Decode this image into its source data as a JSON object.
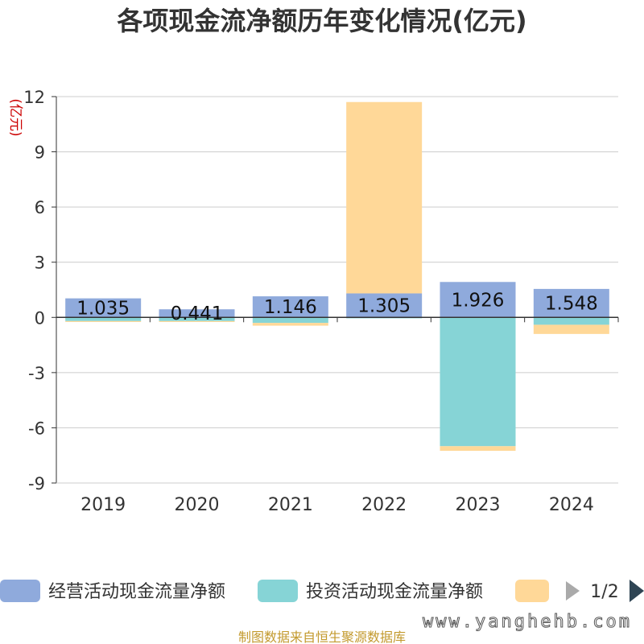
{
  "chart_data": {
    "type": "bar",
    "stacked": true,
    "title": "各项现金流净额历年变化情况(亿元)",
    "ylabel": "(亿元)",
    "categories": [
      "2019",
      "2020",
      "2021",
      "2022",
      "2023",
      "2024"
    ],
    "ylim": [
      -9,
      12
    ],
    "yticks": [
      12,
      9,
      6,
      3,
      0,
      -3,
      -6,
      -9
    ],
    "grid": true,
    "legend_position": "bottom",
    "series": [
      {
        "name": "经营活动现金流量净额",
        "color": "#8faadc",
        "values": [
          1.035,
          0.441,
          1.146,
          1.305,
          1.926,
          1.548
        ],
        "labels": [
          "1.035",
          "0.441",
          "1.146",
          "1.305",
          "1.926",
          "1.548"
        ]
      },
      {
        "name": "投资活动现金流量净额",
        "color": "#86d4d6",
        "values": [
          -0.2,
          -0.2,
          -0.3,
          -0.05,
          -7.0,
          -0.4
        ]
      },
      {
        "name": "",
        "color": "#ffd898",
        "values": [
          -0.05,
          -0.05,
          -0.15,
          10.4,
          -0.25,
          -0.5
        ]
      }
    ]
  },
  "legend": {
    "page": "1/2"
  },
  "footer": {
    "source": "制图数据来自恒生聚源数据库",
    "watermark": "www.yanghehb.com"
  },
  "icons": {
    "prev": "triangle-left-icon",
    "next": "triangle-right-icon"
  }
}
